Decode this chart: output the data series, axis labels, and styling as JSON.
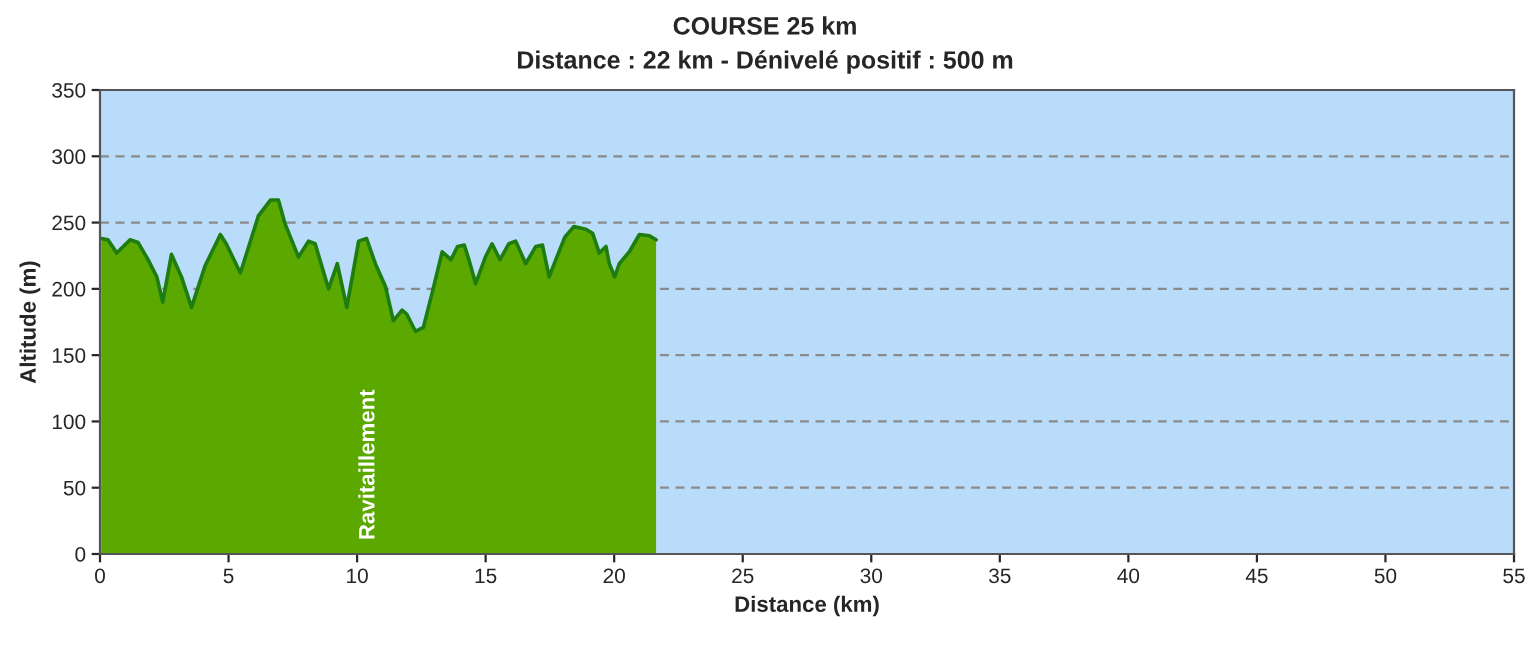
{
  "chart_data": {
    "type": "area",
    "title": "COURSE 25 km",
    "subtitle": "Distance : 22 km - Dénivelé positif : 500 m",
    "xlabel": "Distance (km)",
    "ylabel": "Altitude (m)",
    "annotations": [
      "Ravitaillement"
    ],
    "series": [
      {
        "color": "#5aa800",
        "x": [
          0.05,
          0.31,
          0.65,
          1.17,
          1.48,
          1.87,
          2.21,
          2.44,
          2.78,
          3.17,
          3.56,
          4.08,
          4.68,
          4.91,
          5.46,
          6.16,
          6.63,
          6.94,
          7.2,
          7.72,
          8.11,
          8.37,
          8.89,
          9.23,
          9.6,
          10.06,
          10.37,
          10.71,
          11.1,
          11.41,
          11.75,
          11.93,
          12.27,
          12.58,
          12.92,
          13.31,
          13.65,
          13.91,
          14.17,
          14.35,
          14.61,
          14.99,
          15.25,
          15.56,
          15.9,
          16.17,
          16.56,
          16.95,
          17.21,
          17.47,
          17.73,
          18.08,
          18.43,
          18.9,
          19.16,
          19.42,
          19.68,
          19.81,
          20.02,
          20.2,
          20.59,
          20.98,
          21.37,
          21.63
        ],
        "values": [
          238,
          237,
          227,
          237,
          235,
          222,
          209,
          190,
          226,
          209,
          186,
          217,
          241,
          234,
          212,
          255,
          267,
          267,
          249,
          224,
          236,
          234,
          200,
          219,
          186,
          236,
          238,
          219,
          202,
          176,
          184,
          181,
          168,
          171,
          197,
          228,
          222,
          232,
          233,
          222,
          204,
          224,
          234,
          222,
          234,
          236,
          219,
          232,
          233,
          209,
          222,
          239,
          247,
          245,
          242,
          227,
          232,
          219,
          209,
          219,
          228,
          241,
          240,
          237
        ]
      }
    ],
    "xlim": [
      0,
      55
    ],
    "xticks": [
      0,
      5,
      10,
      15,
      20,
      25,
      30,
      35,
      40,
      45,
      50,
      55
    ],
    "ylim": [
      0,
      350
    ],
    "yticks": [
      0,
      50,
      100,
      150,
      200,
      250,
      300,
      350
    ],
    "grid": "y",
    "line_style": "solid"
  }
}
